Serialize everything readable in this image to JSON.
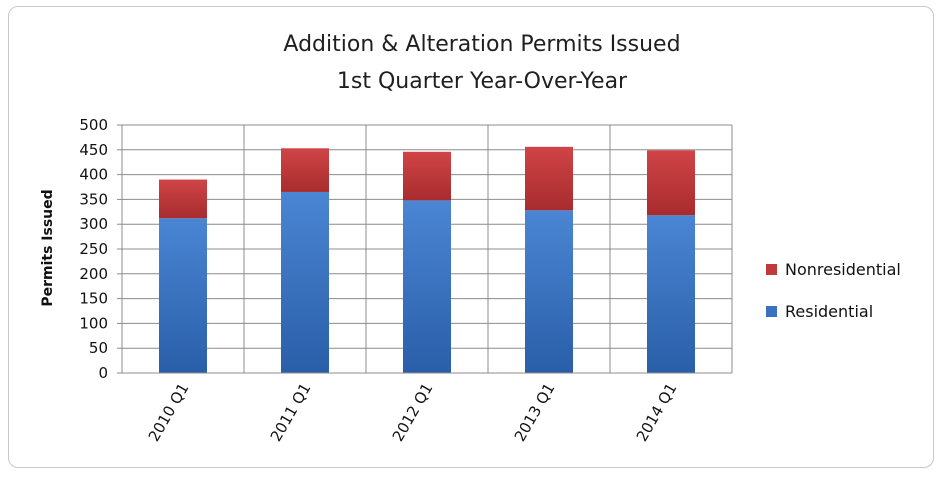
{
  "chart_data": {
    "type": "bar",
    "stacked": true,
    "title": "Addition & Alteration Permits Issued",
    "subtitle": "1st Quarter Year-Over-Year",
    "xlabel": "",
    "ylabel": "Permits Issued",
    "ylim": [
      0,
      500
    ],
    "yticks": [
      0,
      50,
      100,
      150,
      200,
      250,
      300,
      350,
      400,
      450,
      500
    ],
    "categories": [
      "2010 Q1",
      "2011 Q1",
      "2012 Q1",
      "2013 Q1",
      "2014 Q1"
    ],
    "series": [
      {
        "name": "Residential",
        "color": "#3a72c0",
        "values": [
          312,
          365,
          348,
          328,
          318
        ]
      },
      {
        "name": "Nonresidential",
        "color": "#c0393b",
        "values": [
          78,
          88,
          98,
          128,
          131
        ]
      }
    ],
    "legend": {
      "position": "right",
      "order": [
        "Nonresidential",
        "Residential"
      ]
    },
    "grid": true
  }
}
